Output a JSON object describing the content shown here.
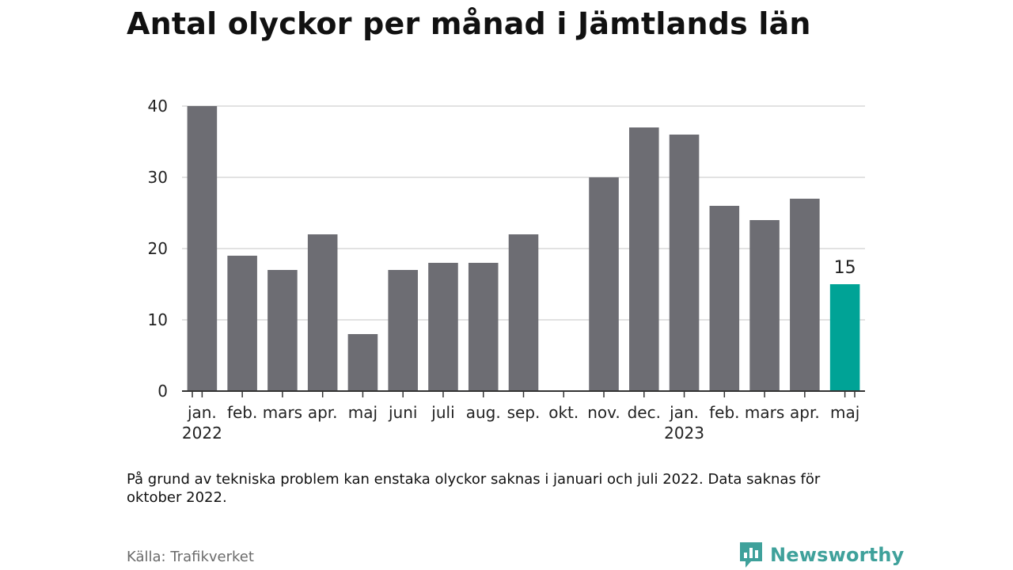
{
  "chart_data": {
    "type": "bar",
    "title": "Antal olyckor per månad i Jämtlands län",
    "categories": [
      "jan.",
      "feb.",
      "mars",
      "apr.",
      "maj",
      "juni",
      "juli",
      "aug.",
      "sep.",
      "okt.",
      "nov.",
      "dec.",
      "jan.",
      "feb.",
      "mars",
      "apr.",
      "maj"
    ],
    "year_labels": [
      {
        "index": 0,
        "label": "2022"
      },
      {
        "index": 12,
        "label": "2023"
      }
    ],
    "values": [
      40,
      19,
      17,
      22,
      8,
      17,
      18,
      18,
      22,
      null,
      30,
      37,
      36,
      26,
      24,
      27,
      15
    ],
    "highlight_index": 16,
    "highlight_label": "15",
    "ylim": [
      0,
      40
    ],
    "yticks": [
      0,
      10,
      20,
      30,
      40
    ],
    "grid": true,
    "colors": {
      "bar": "#6d6d73",
      "highlight": "#00a396",
      "grid": "#d9d9d9",
      "axis": "#333333"
    }
  },
  "note": "På grund av tekniska problem kan enstaka olyckor saknas i januari och juli 2022. Data saknas för oktober 2022.",
  "source": "Källa: Trafikverket",
  "brand": {
    "name": "Newsworthy",
    "icon": "newsworthy-logo-icon",
    "color": "#3fa19b"
  }
}
